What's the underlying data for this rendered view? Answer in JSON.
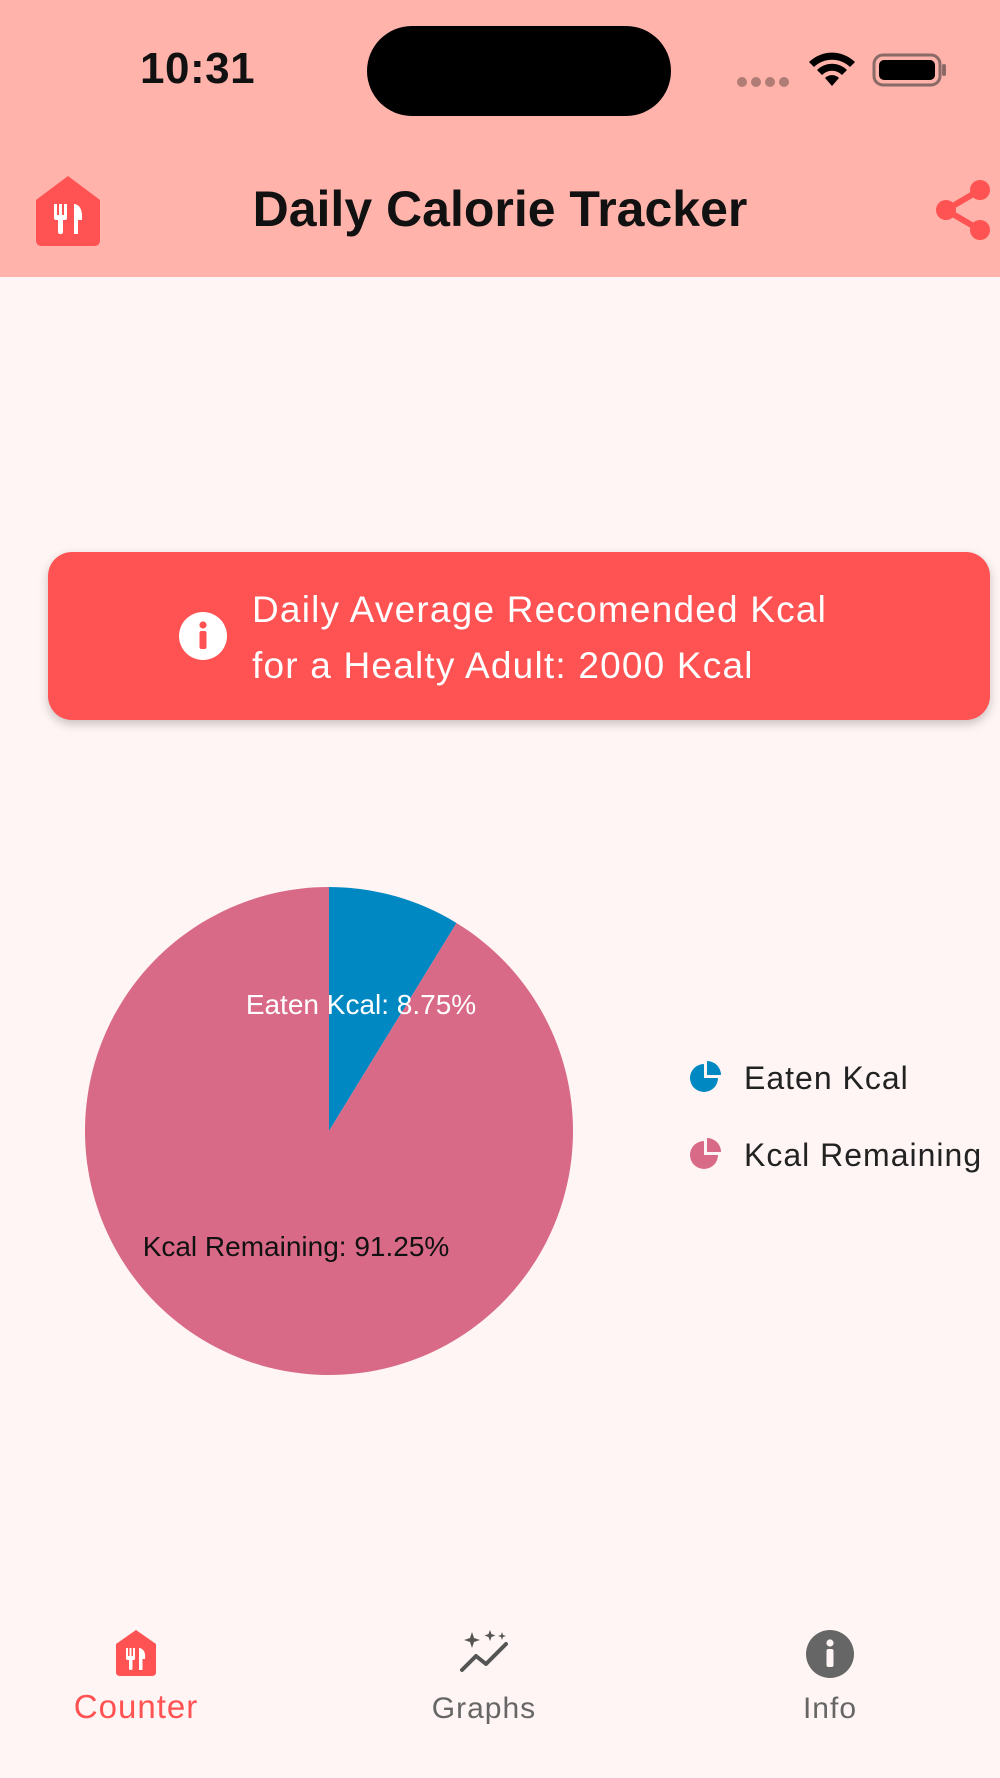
{
  "status_bar": {
    "time": "10:31"
  },
  "app_bar": {
    "title": "Daily Calorie Tracker",
    "logo_icon": "home-utensils-icon",
    "share_icon": "share-icon"
  },
  "info_banner": {
    "icon": "info-icon",
    "line1": "Daily Average Recomended Kcal",
    "line2": "for a Healty Adult: 2000 Kcal"
  },
  "chart_data": {
    "type": "pie",
    "title": "",
    "slices": [
      {
        "name": "Eaten Kcal",
        "value": 8.75,
        "label": "Eaten Kcal: 8.75%",
        "color": "#0088c2"
      },
      {
        "name": "Kcal Remaining",
        "value": 91.25,
        "label": "Kcal Remaining: 91.25%",
        "color": "#d86a87"
      }
    ],
    "legend_position": "right",
    "start_angle": "top",
    "direction": "clockwise"
  },
  "colors": {
    "accent": "#ff5252",
    "header_bg": "#ffb3aa",
    "page_bg": "#fff5f4",
    "inactive_nav": "#666666"
  },
  "bottom_nav": {
    "items": [
      {
        "label": "Counter",
        "icon": "home-utensils-icon",
        "active": true
      },
      {
        "label": "Graphs",
        "icon": "sparkle-chart-icon",
        "active": false
      },
      {
        "label": "Info",
        "icon": "info-icon",
        "active": false
      }
    ]
  }
}
